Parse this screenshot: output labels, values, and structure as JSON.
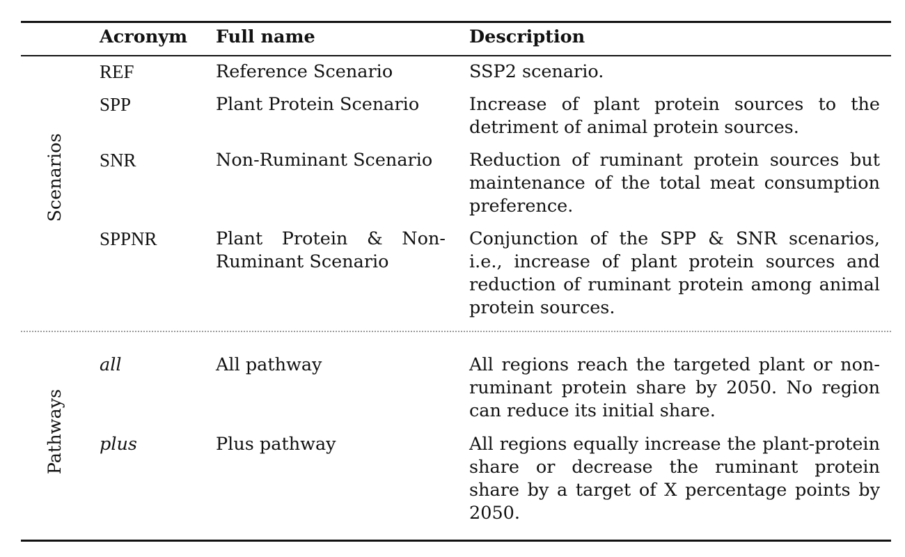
{
  "headers": {
    "acronym": "Acronym",
    "full_name": "Full name",
    "description": "Description"
  },
  "groups": [
    {
      "label": "Scenarios",
      "rows": [
        {
          "acronym": "REF",
          "full_name": "Reference Scenario",
          "description": "SSP2 scenario."
        },
        {
          "acronym": "SPP",
          "full_name": "Plant Protein Scenario",
          "description": "Increase of plant protein sources to the detriment of animal protein sources."
        },
        {
          "acronym": "SNR",
          "full_name": "Non-Ruminant Scenario",
          "description": "Reduction of ruminant protein sources but maintenance of the total meat consumption preference."
        },
        {
          "acronym": "SPPNR",
          "full_name": "Plant Protein & Non-Ruminant Scenario",
          "description": "Conjunction of the SPP & SNR scenarios, i.e., increase of plant protein sources and reduction of ruminant protein among animal protein sources."
        }
      ]
    },
    {
      "label": "Pathways",
      "rows": [
        {
          "acronym": "all",
          "full_name": "All pathway",
          "description": "All regions reach the targeted plant or non-ruminant protein share by 2050. No region can reduce its initial share."
        },
        {
          "acronym": "plus",
          "full_name": "Plus pathway",
          "description": "All regions equally increase the plant-protein share or decrease the ruminant protein share by a target of X percentage points by 2050."
        }
      ]
    }
  ]
}
